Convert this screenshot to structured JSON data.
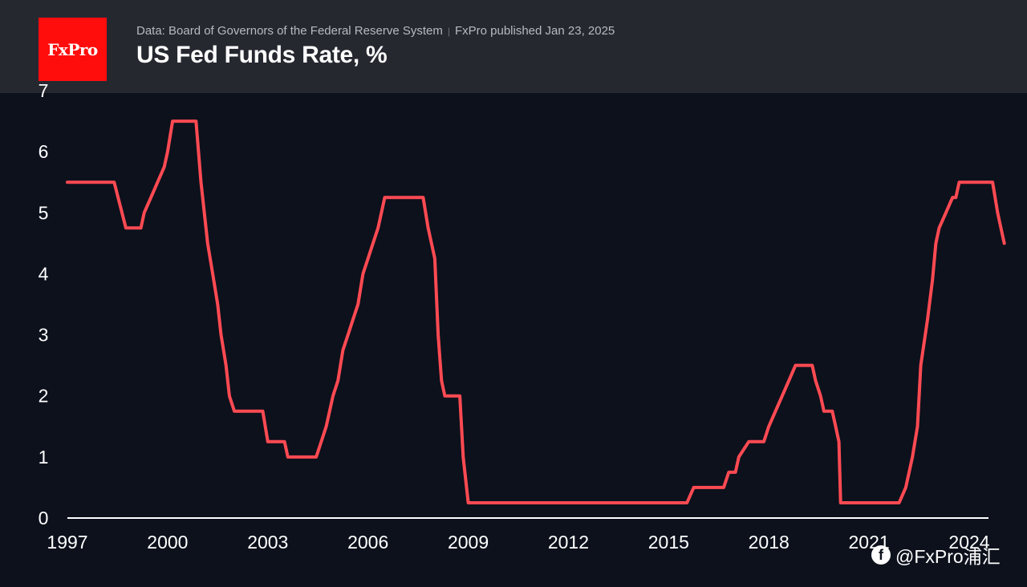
{
  "header": {
    "logo_text": "FxPro",
    "source": "Data: Board of Governors of the Federal Reserve System",
    "published": "FxPro published Jan 23, 2025",
    "title": "US Fed Funds Rate, %"
  },
  "watermark": {
    "icon": "facebook-icon",
    "text": "@FxPro浦汇"
  },
  "colors": {
    "background": "#0c111c",
    "header": "#262830",
    "logo": "#ff0d0d",
    "line": "#ff4a52",
    "axis": "#ffffff"
  },
  "chart_data": {
    "type": "line",
    "title": "US Fed Funds Rate, %",
    "xlabel": "",
    "ylabel": "",
    "xlim": [
      1997,
      2024.75
    ],
    "ylim": [
      0,
      7
    ],
    "x_ticks": [
      "1997",
      "2000",
      "2003",
      "2006",
      "2009",
      "2012",
      "2015",
      "2018",
      "2021",
      "2024"
    ],
    "y_ticks": [
      "0",
      "1",
      "2",
      "3",
      "4",
      "5",
      "6",
      "7"
    ],
    "grid": false,
    "series": [
      {
        "name": "",
        "points": [
          [
            1997.0,
            5.5
          ],
          [
            1998.4,
            5.5
          ],
          [
            1998.75,
            4.75
          ],
          [
            1999.2,
            4.75
          ],
          [
            1999.3,
            5.0
          ],
          [
            1999.5,
            5.25
          ],
          [
            1999.7,
            5.5
          ],
          [
            1999.9,
            5.75
          ],
          [
            2000.0,
            6.0
          ],
          [
            2000.15,
            6.5
          ],
          [
            2000.85,
            6.5
          ],
          [
            2001.0,
            5.5
          ],
          [
            2001.2,
            4.5
          ],
          [
            2001.35,
            4.0
          ],
          [
            2001.5,
            3.5
          ],
          [
            2001.6,
            3.0
          ],
          [
            2001.75,
            2.5
          ],
          [
            2001.85,
            2.0
          ],
          [
            2002.0,
            1.75
          ],
          [
            2002.85,
            1.75
          ],
          [
            2003.0,
            1.25
          ],
          [
            2003.5,
            1.25
          ],
          [
            2003.6,
            1.0
          ],
          [
            2004.45,
            1.0
          ],
          [
            2004.6,
            1.25
          ],
          [
            2004.75,
            1.5
          ],
          [
            2004.95,
            2.0
          ],
          [
            2005.1,
            2.25
          ],
          [
            2005.25,
            2.75
          ],
          [
            2005.4,
            3.0
          ],
          [
            2005.55,
            3.25
          ],
          [
            2005.7,
            3.5
          ],
          [
            2005.85,
            4.0
          ],
          [
            2006.0,
            4.25
          ],
          [
            2006.15,
            4.5
          ],
          [
            2006.3,
            4.75
          ],
          [
            2006.5,
            5.25
          ],
          [
            2007.65,
            5.25
          ],
          [
            2007.8,
            4.75
          ],
          [
            2007.9,
            4.5
          ],
          [
            2008.0,
            4.25
          ],
          [
            2008.1,
            3.0
          ],
          [
            2008.2,
            2.25
          ],
          [
            2008.3,
            2.0
          ],
          [
            2008.75,
            2.0
          ],
          [
            2008.8,
            1.5
          ],
          [
            2008.85,
            1.0
          ],
          [
            2009.0,
            0.25
          ],
          [
            2015.55,
            0.25
          ],
          [
            2015.75,
            0.5
          ],
          [
            2016.65,
            0.5
          ],
          [
            2016.8,
            0.75
          ],
          [
            2017.0,
            0.75
          ],
          [
            2017.1,
            1.0
          ],
          [
            2017.4,
            1.25
          ],
          [
            2017.85,
            1.25
          ],
          [
            2018.0,
            1.5
          ],
          [
            2018.2,
            1.75
          ],
          [
            2018.4,
            2.0
          ],
          [
            2018.6,
            2.25
          ],
          [
            2018.8,
            2.5
          ],
          [
            2019.3,
            2.5
          ],
          [
            2019.4,
            2.25
          ],
          [
            2019.55,
            2.0
          ],
          [
            2019.65,
            1.75
          ],
          [
            2019.9,
            1.75
          ],
          [
            2020.0,
            1.5
          ],
          [
            2020.1,
            1.25
          ],
          [
            2020.15,
            0.25
          ],
          [
            2021.9,
            0.25
          ],
          [
            2022.1,
            0.5
          ],
          [
            2022.3,
            1.0
          ],
          [
            2022.45,
            1.5
          ],
          [
            2022.55,
            2.5
          ],
          [
            2022.75,
            3.25
          ],
          [
            2022.9,
            3.9
          ],
          [
            2023.0,
            4.5
          ],
          [
            2023.1,
            4.75
          ],
          [
            2023.3,
            5.0
          ],
          [
            2023.5,
            5.25
          ],
          [
            2023.6,
            5.25
          ],
          [
            2023.7,
            5.5
          ],
          [
            2024.7,
            5.5
          ],
          [
            2024.85,
            5.0
          ],
          [
            2024.95,
            4.75
          ],
          [
            2025.05,
            4.5
          ]
        ]
      }
    ]
  }
}
